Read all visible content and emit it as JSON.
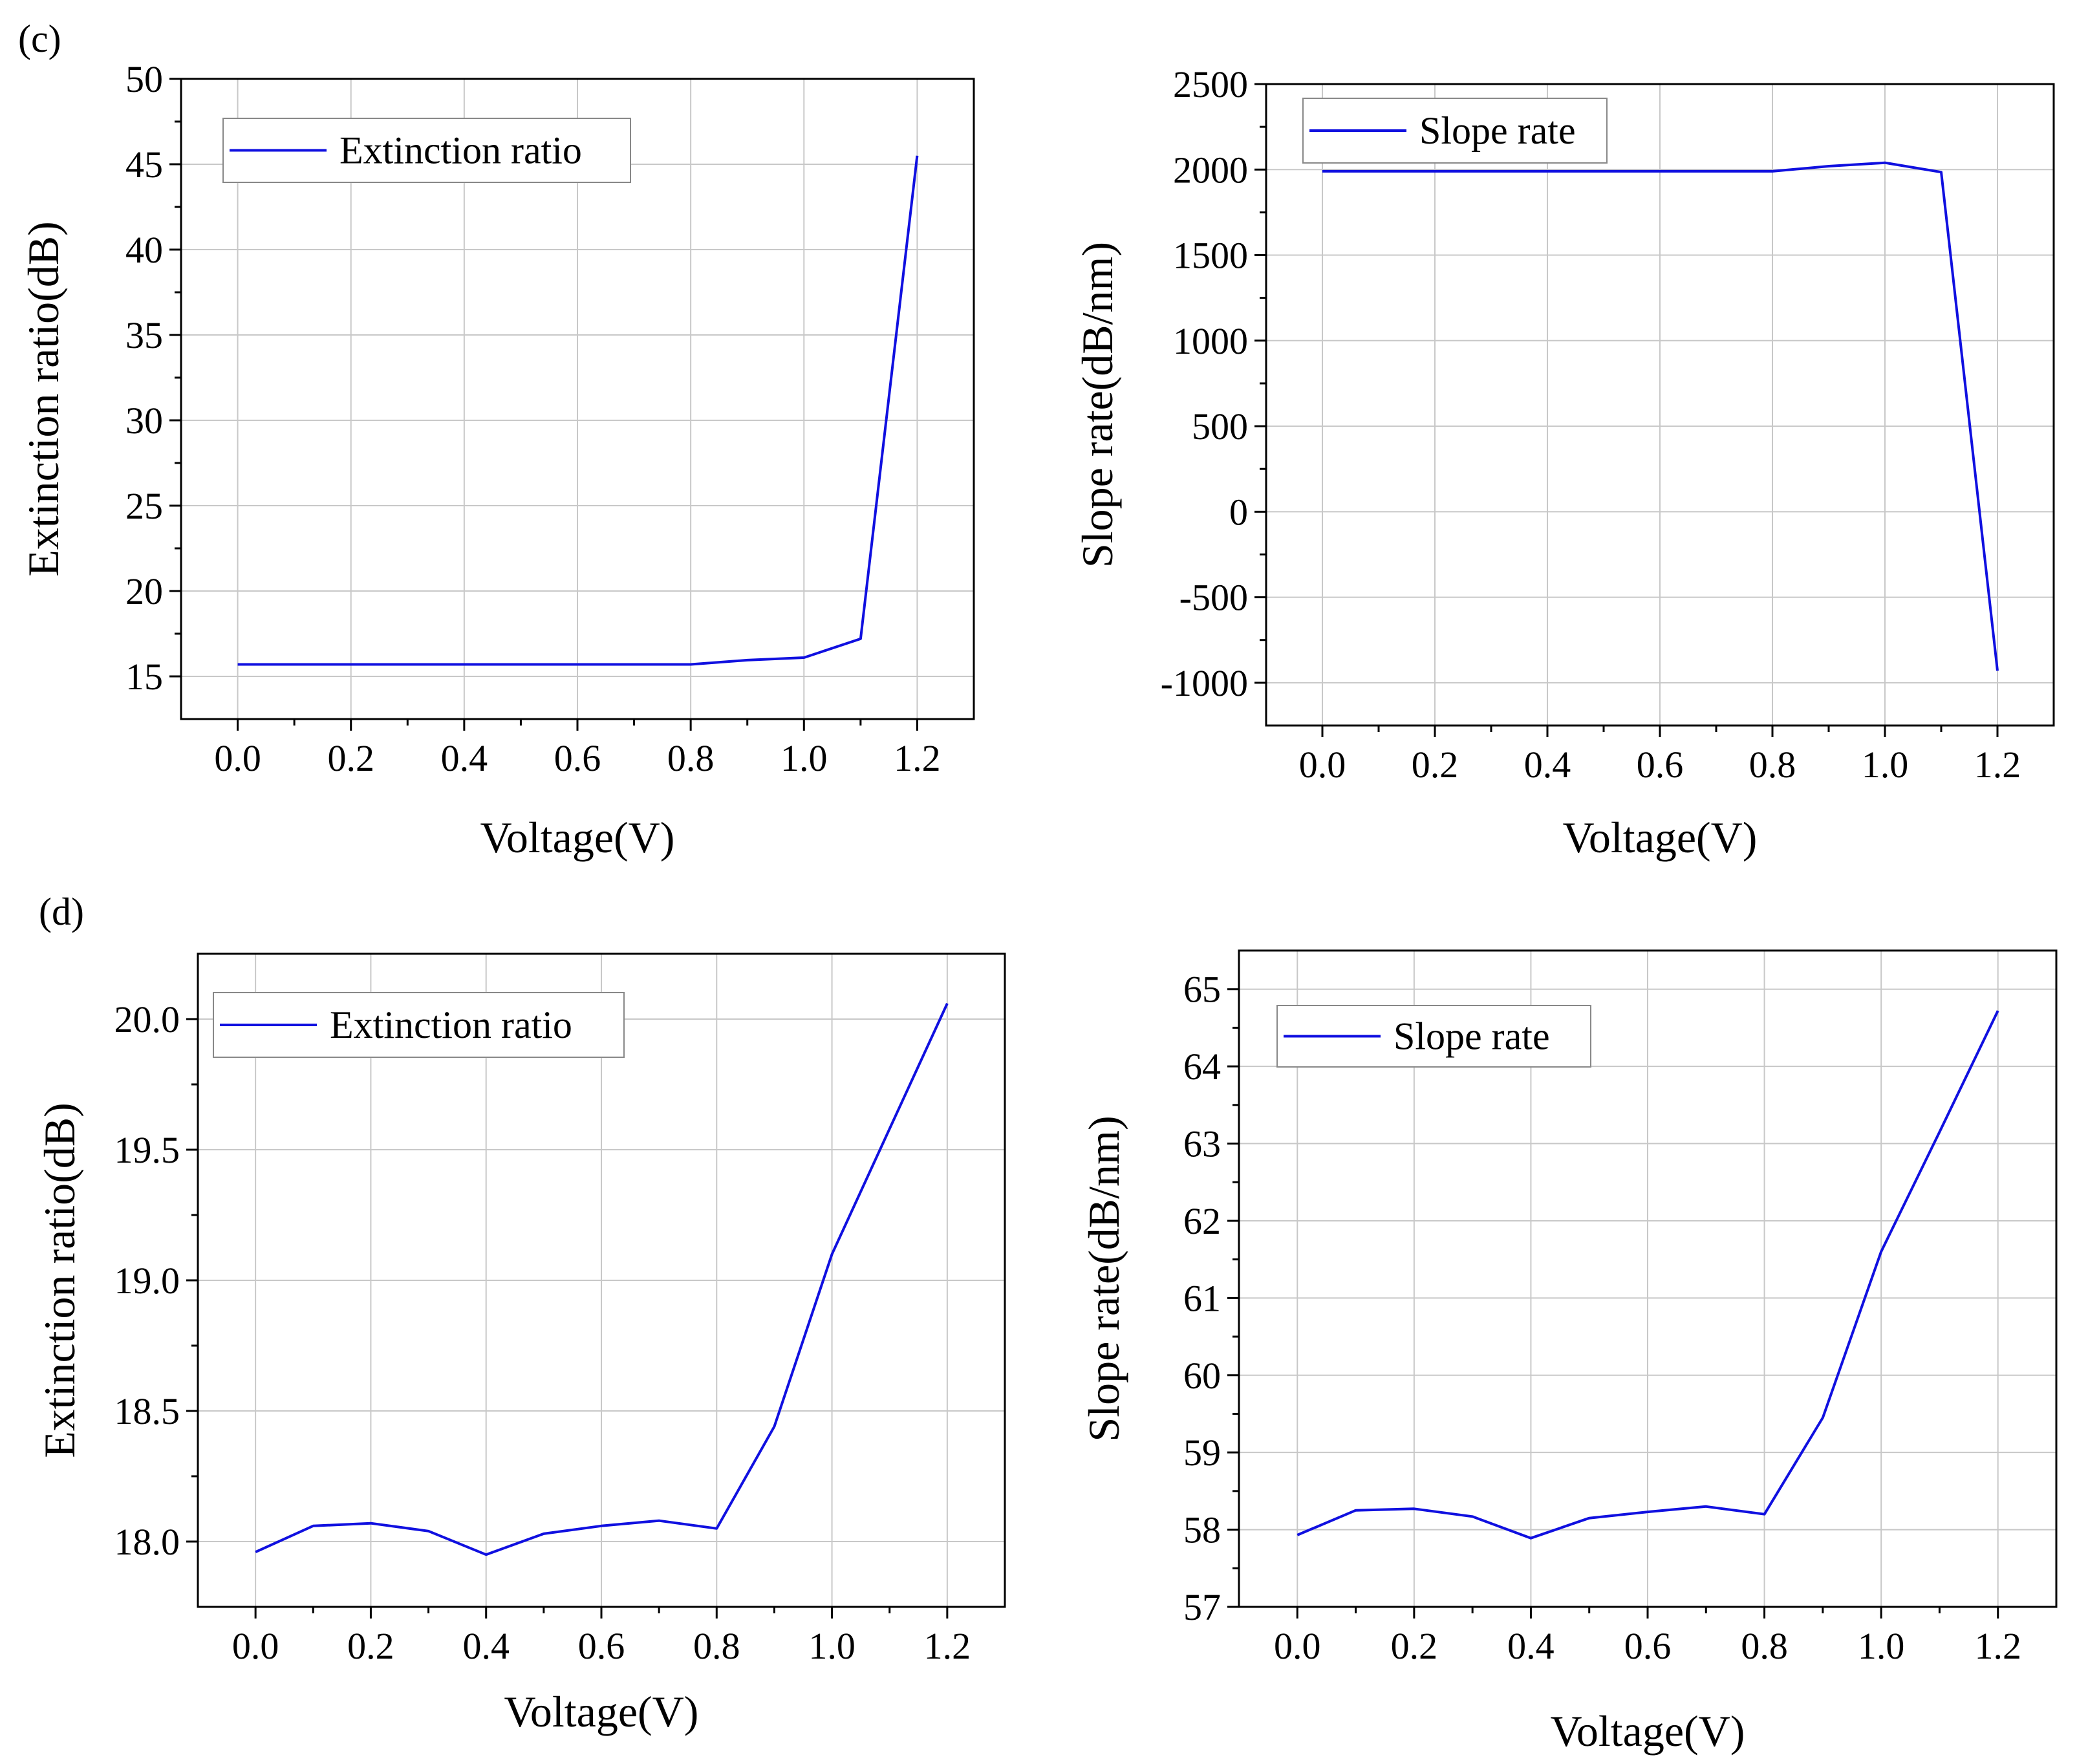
{
  "panel_labels": [
    "(c)",
    "(d)"
  ],
  "chart_data": [
    {
      "type": "line",
      "title": "",
      "xlabel": "Voltage(V)",
      "ylabel": "Extinction ratio(dB)",
      "legend": [
        "Extinction ratio"
      ],
      "legend_position": "top-left",
      "grid": true,
      "xlim": [
        -0.1,
        1.3
      ],
      "ylim": [
        12.5,
        50
      ],
      "xticks": [
        "0.0",
        "0.2",
        "0.4",
        "0.6",
        "0.8",
        "1.0",
        "1.2"
      ],
      "yticks": [
        "15",
        "20",
        "25",
        "30",
        "35",
        "40",
        "45",
        "50"
      ],
      "series": [
        {
          "name": "Extinction ratio",
          "color": "#1010e0",
          "x": [
            0.0,
            0.2,
            0.4,
            0.6,
            0.8,
            0.9,
            1.0,
            1.1,
            1.2
          ],
          "y": [
            15.7,
            15.7,
            15.7,
            15.7,
            15.7,
            15.95,
            16.1,
            17.2,
            45.5
          ]
        }
      ]
    },
    {
      "type": "line",
      "title": "",
      "xlabel": "Voltage(V)",
      "ylabel": "Slope rate(dB/nm)",
      "legend": [
        "Slope rate"
      ],
      "legend_position": "top-left",
      "grid": true,
      "xlim": [
        -0.1,
        1.3
      ],
      "ylim": [
        -1250,
        2500
      ],
      "xticks": [
        "0.0",
        "0.2",
        "0.4",
        "0.6",
        "0.8",
        "1.0",
        "1.2"
      ],
      "yticks": [
        "-1000",
        "-500",
        "0",
        "500",
        "1000",
        "1500",
        "2000",
        "2500"
      ],
      "series": [
        {
          "name": "Slope rate",
          "color": "#1010e0",
          "x": [
            0.0,
            0.2,
            0.4,
            0.6,
            0.8,
            0.9,
            1.0,
            1.1,
            1.2
          ],
          "y": [
            1990,
            1990,
            1990,
            1990,
            1990,
            2020,
            2040,
            1985,
            -930
          ]
        }
      ]
    },
    {
      "type": "line",
      "title": "",
      "xlabel": "Voltage(V)",
      "ylabel": "Extinction ratio(dB)",
      "legend": [
        "Extinction ratio"
      ],
      "legend_position": "top-left",
      "grid": true,
      "xlim": [
        -0.1,
        1.3
      ],
      "ylim": [
        17.75,
        20.25
      ],
      "xticks": [
        "0.0",
        "0.2",
        "0.4",
        "0.6",
        "0.8",
        "1.0",
        "1.2"
      ],
      "yticks": [
        "18.0",
        "18.5",
        "19.0",
        "19.5",
        "20.0"
      ],
      "series": [
        {
          "name": "Extinction ratio",
          "color": "#1010e0",
          "x": [
            0.0,
            0.1,
            0.2,
            0.3,
            0.4,
            0.5,
            0.6,
            0.7,
            0.8,
            0.9,
            1.0,
            1.1,
            1.2
          ],
          "y": [
            17.96,
            18.06,
            18.07,
            18.04,
            17.95,
            18.03,
            18.06,
            18.08,
            18.05,
            18.44,
            19.1,
            19.58,
            20.06
          ]
        }
      ]
    },
    {
      "type": "line",
      "title": "",
      "xlabel": "Voltage(V)",
      "ylabel": "Slope rate(dB/nm)",
      "legend": [
        "Slope rate"
      ],
      "legend_position": "top-left",
      "grid": true,
      "xlim": [
        -0.1,
        1.3
      ],
      "ylim": [
        57,
        65.5
      ],
      "xticks": [
        "0.0",
        "0.2",
        "0.4",
        "0.6",
        "0.8",
        "1.0",
        "1.2"
      ],
      "yticks": [
        "57",
        "58",
        "59",
        "60",
        "61",
        "62",
        "63",
        "64",
        "65"
      ],
      "series": [
        {
          "name": "Slope rate",
          "color": "#1010e0",
          "x": [
            0.0,
            0.1,
            0.2,
            0.3,
            0.4,
            0.5,
            0.6,
            0.7,
            0.8,
            0.9,
            1.0,
            1.1,
            1.2
          ],
          "y": [
            57.93,
            58.25,
            58.27,
            58.17,
            57.89,
            58.15,
            58.23,
            58.3,
            58.2,
            59.45,
            61.6,
            63.15,
            64.72
          ]
        }
      ]
    }
  ]
}
